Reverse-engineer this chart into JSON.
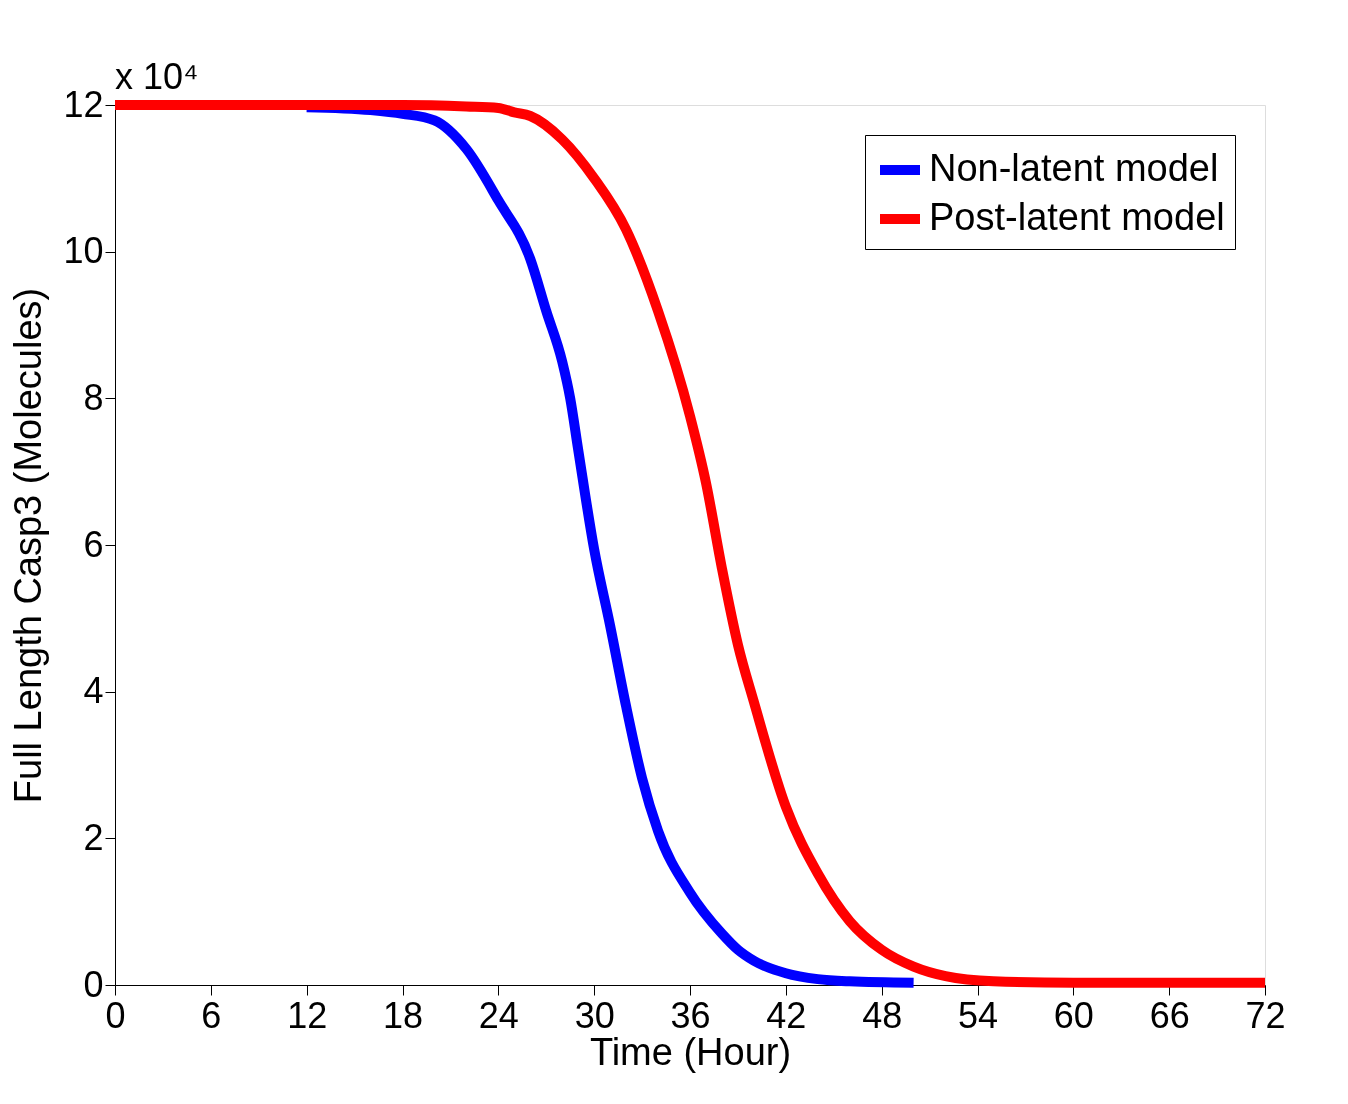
{
  "chart_data": {
    "type": "line",
    "xlabel": "Time (Hour)",
    "ylabel": "Full Length Casp3 (Molecules)",
    "annotations": [
      "x 10⁴"
    ],
    "xlim": [
      0,
      72
    ],
    "xticks": [
      0,
      6,
      12,
      18,
      24,
      30,
      36,
      42,
      48,
      54,
      60,
      66,
      72
    ],
    "ylim": [
      0,
      12
    ],
    "yticks": [
      0,
      2,
      4,
      6,
      8,
      10,
      12
    ],
    "grid": false,
    "legend": "top right",
    "line_style": "solid",
    "marker": "none",
    "series": [
      {
        "name": "Non-latent model",
        "color": "#0000ff",
        "x": [
          12,
          16,
          18,
          20,
          22,
          24,
          26,
          27,
          28,
          28.5,
          29,
          30,
          31,
          32,
          33,
          34,
          36,
          38,
          39,
          40,
          42,
          44,
          46,
          50
        ],
        "values": [
          11.97,
          11.93,
          11.88,
          11.79,
          11.4,
          10.7,
          9.9,
          9.19,
          8.5,
          8.0,
          7.3,
          5.94,
          4.9,
          3.8,
          2.82,
          2.1,
          1.26,
          0.7,
          0.48,
          0.33,
          0.16,
          0.08,
          0.05,
          0.03
        ]
      },
      {
        "name": "Post-latent model",
        "color": "#ff0000",
        "x": [
          0,
          6,
          12,
          18,
          22,
          24,
          25,
          26,
          28,
          30,
          32,
          34,
          36,
          37,
          38,
          39,
          40,
          42,
          44,
          46,
          48,
          50,
          52,
          55,
          60,
          72
        ],
        "values": [
          12,
          12,
          12,
          12,
          11.98,
          11.96,
          11.9,
          11.85,
          11.53,
          11.0,
          10.3,
          9.19,
          7.76,
          6.85,
          5.68,
          4.64,
          3.86,
          2.43,
          1.52,
          0.87,
          0.48,
          0.25,
          0.12,
          0.05,
          0.03,
          0.03
        ]
      }
    ]
  }
}
